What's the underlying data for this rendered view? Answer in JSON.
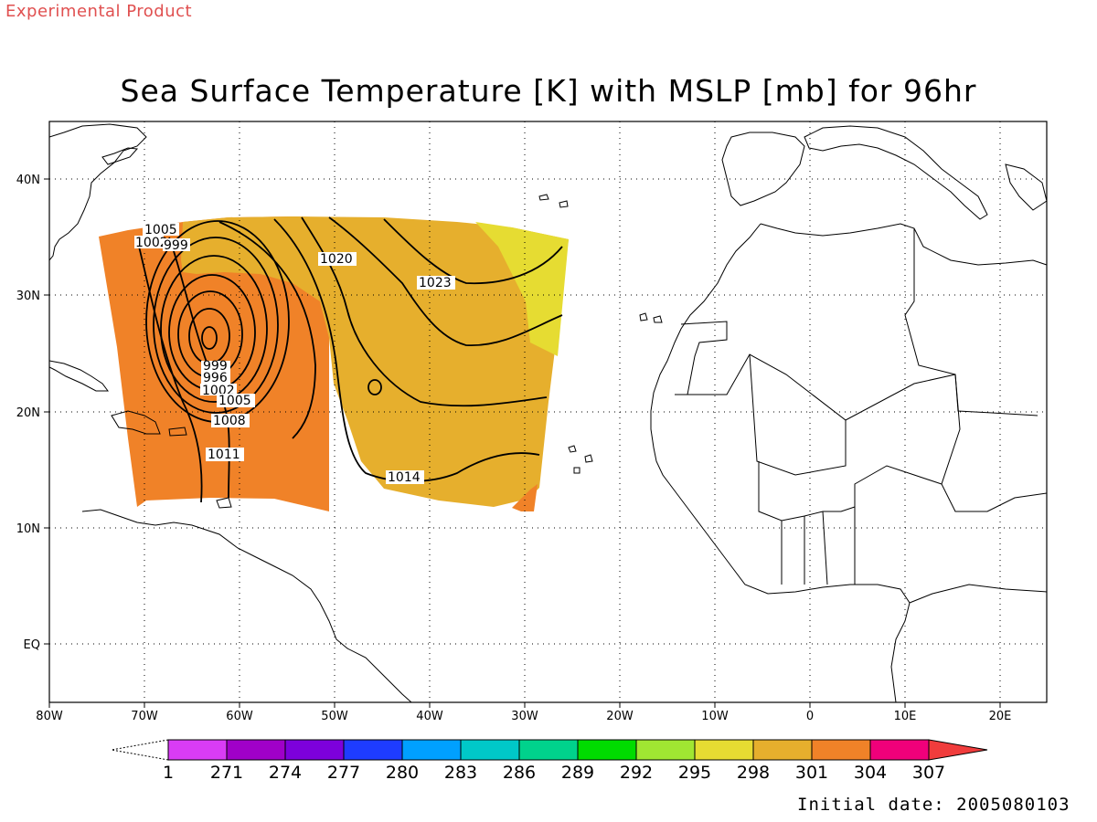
{
  "experimental_label": "Experimental Product",
  "title": "Sea Surface Temperature [K] with MSLP [mb] for 96hr",
  "initial_date": "Initial date: 2005080103",
  "axes": {
    "longitude_ticks": [
      "80W",
      "70W",
      "60W",
      "50W",
      "40W",
      "30W",
      "20W",
      "10W",
      "0",
      "10E",
      "20E"
    ],
    "latitude_ticks": [
      "40N",
      "30N",
      "20N",
      "10N",
      "EQ"
    ],
    "lon_range_deg": [
      -80,
      25
    ],
    "lat_range_deg": [
      -5,
      45
    ],
    "grid": "dotted"
  },
  "colorbar": {
    "labels": [
      "1",
      "271",
      "274",
      "277",
      "280",
      "283",
      "286",
      "289",
      "292",
      "295",
      "298",
      "301",
      "304",
      "307"
    ],
    "colors": [
      "#d93cf5",
      "#a000c8",
      "#7d00dc",
      "#1e3cff",
      "#00a0ff",
      "#00c8c8",
      "#00d28c",
      "#00dc00",
      "#a0e632",
      "#e6dc32",
      "#e6af2d",
      "#f08228",
      "#f0007a"
    ],
    "overflow_color": "#f03c3c",
    "underflow_color": "#ffffff"
  },
  "sst_field": {
    "colors": {
      "orange": "#f08228",
      "gold": "#e6af2d",
      "yellow": "#e6dc32"
    }
  },
  "mslp_contours": {
    "labels": [
      {
        "text": "1005",
        "lon": -68.1,
        "lat": 35.3
      },
      {
        "text": "1002",
        "lon": -70.6,
        "lat": 34.6
      },
      {
        "text": "999",
        "lon": -67.5,
        "lat": 34.5
      },
      {
        "text": "1020",
        "lon": -48.0,
        "lat": 32.0
      },
      {
        "text": "1023",
        "lon": -39.5,
        "lat": 30.0
      },
      {
        "text": "999",
        "lon": -62.8,
        "lat": 23.4
      },
      {
        "text": "996",
        "lon": -62.7,
        "lat": 22.4
      },
      {
        "text": "1002",
        "lon": -62.8,
        "lat": 21.4
      },
      {
        "text": "1005",
        "lon": -59.5,
        "lat": 20.5
      },
      {
        "text": "1008",
        "lon": -60.5,
        "lat": 18.8
      },
      {
        "text": "1011",
        "lon": -61.5,
        "lat": 16.0
      },
      {
        "text": "1014",
        "lon": -41.0,
        "lat": 13.8
      }
    ]
  }
}
